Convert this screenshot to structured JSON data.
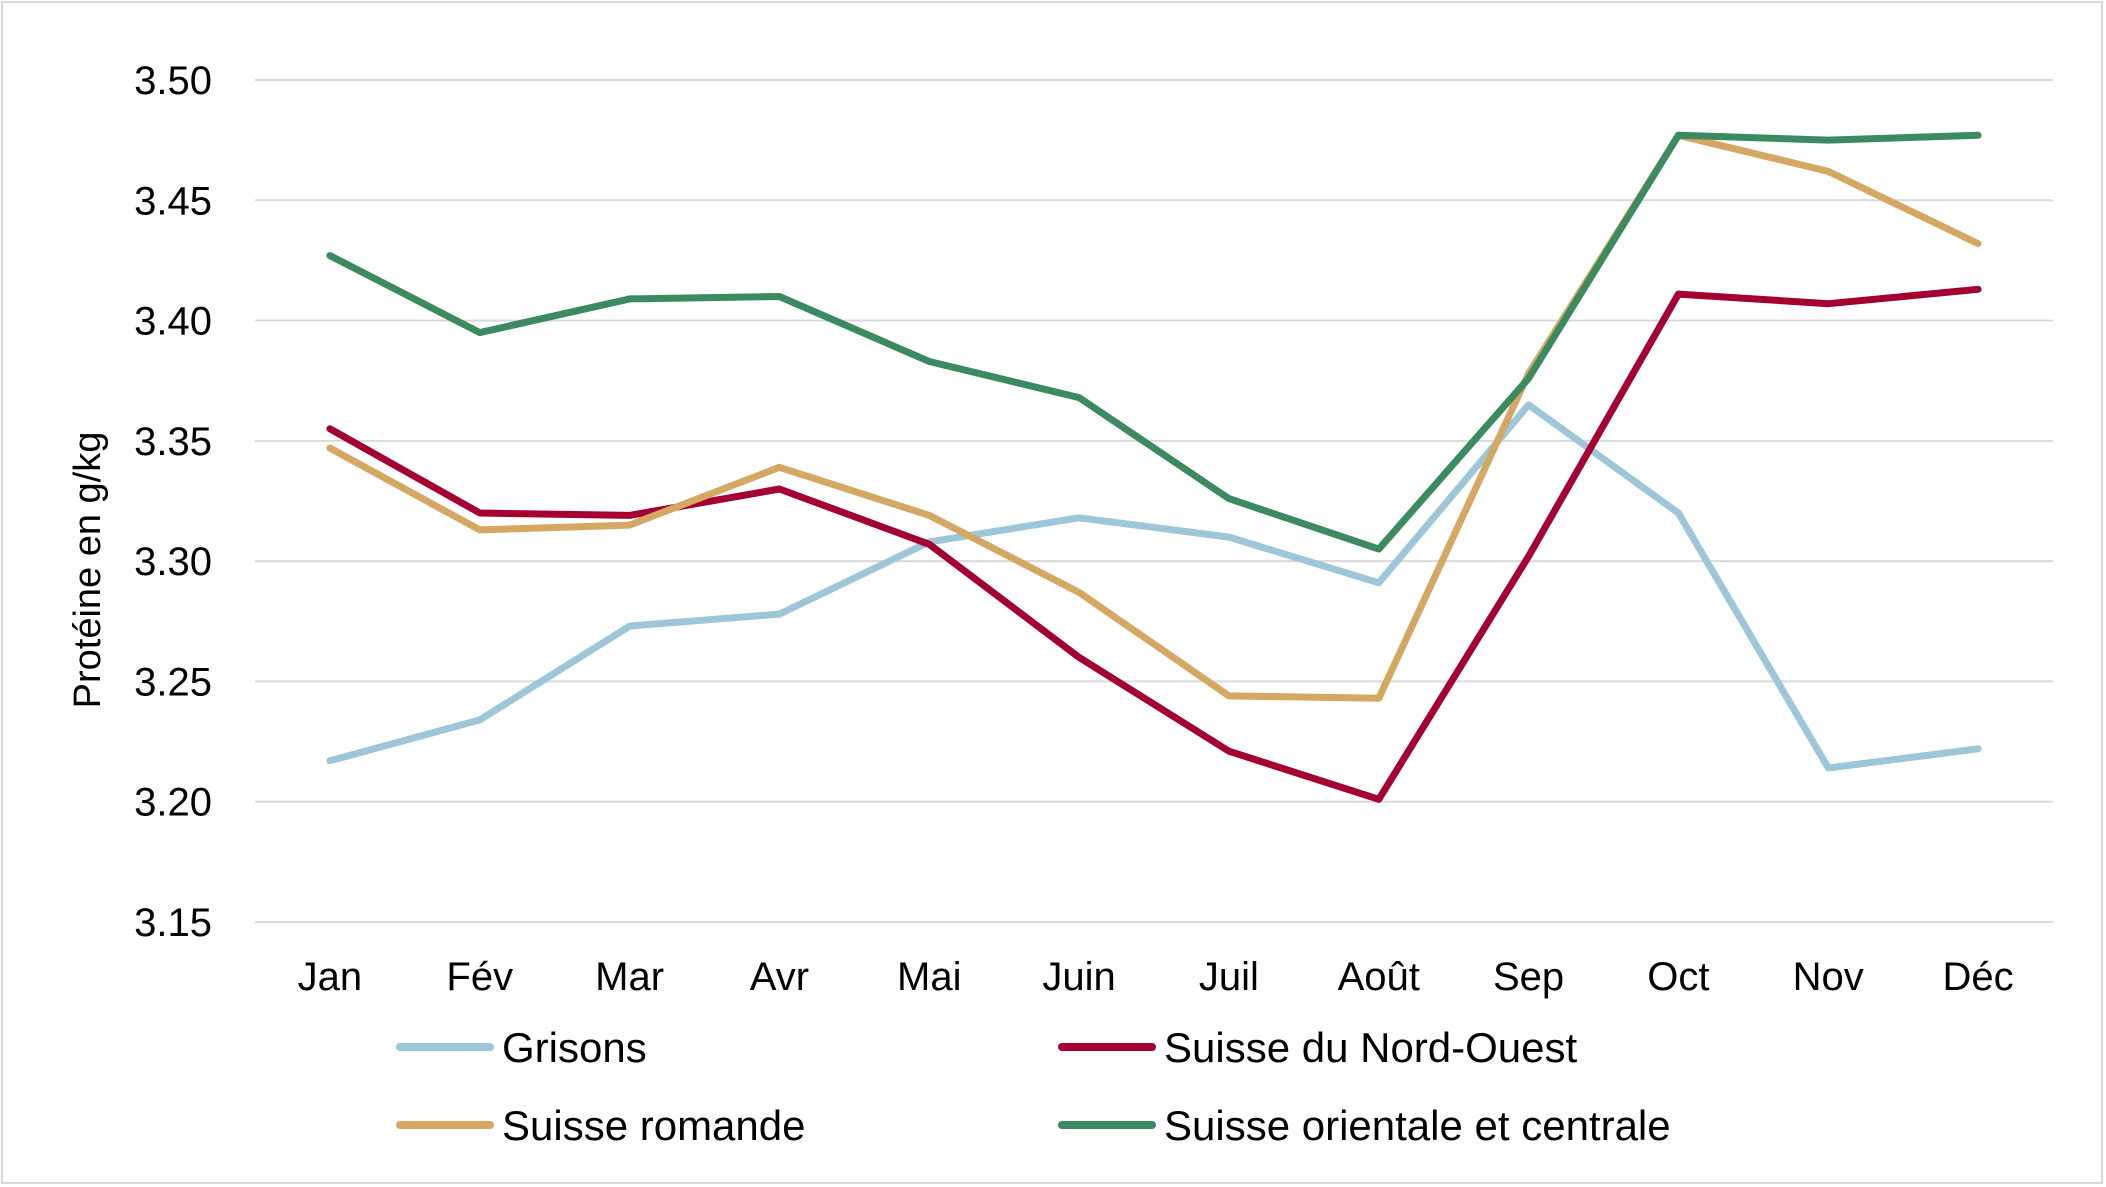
{
  "chart_data": {
    "type": "line",
    "title": "",
    "xlabel": "",
    "ylabel": "Protéine en g/kg",
    "categories": [
      "Jan",
      "Fév",
      "Mar",
      "Avr",
      "Mai",
      "Juin",
      "Juil",
      "Août",
      "Sep",
      "Oct",
      "Nov",
      "Déc"
    ],
    "ylim": [
      3.15,
      3.5
    ],
    "yticks": [
      "3.15",
      "3.20",
      "3.25",
      "3.30",
      "3.35",
      "3.40",
      "3.45",
      "3.50"
    ],
    "grid": true,
    "legend_position": "bottom",
    "series": [
      {
        "name": "Grisons",
        "color": "#9dc6d8",
        "values": [
          3.217,
          3.234,
          3.273,
          3.278,
          3.308,
          3.318,
          3.31,
          3.291,
          3.365,
          3.32,
          3.214,
          3.222
        ]
      },
      {
        "name": "Suisse du Nord-Ouest",
        "color": "#a50032",
        "values": [
          3.355,
          3.32,
          3.319,
          3.33,
          3.307,
          3.26,
          3.221,
          3.201,
          3.302,
          3.411,
          3.407,
          3.413
        ]
      },
      {
        "name": "Suisse romande",
        "color": "#d4a763",
        "values": [
          3.347,
          3.313,
          3.315,
          3.339,
          3.319,
          3.287,
          3.244,
          3.243,
          3.378,
          3.477,
          3.462,
          3.432
        ]
      },
      {
        "name": "Suisse orientale et centrale",
        "color": "#3c8a60",
        "values": [
          3.427,
          3.395,
          3.409,
          3.41,
          3.383,
          3.368,
          3.326,
          3.305,
          3.376,
          3.477,
          3.475,
          3.477
        ]
      }
    ]
  }
}
